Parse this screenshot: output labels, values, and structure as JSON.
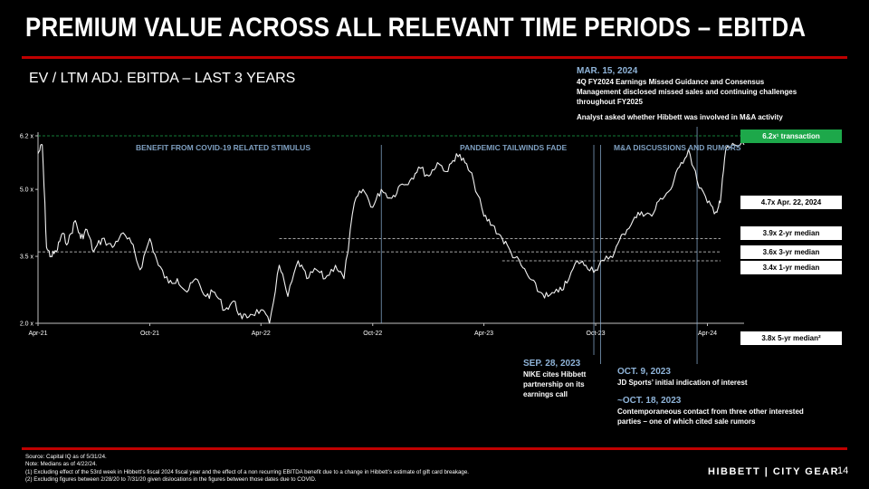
{
  "header": {
    "title": "PREMIUM VALUE ACROSS ALL RELEVANT TIME PERIODS – EBITDA",
    "subtitle": "EV / LTM ADJ. EBITDA – LAST 3 YEARS"
  },
  "annotations": {
    "mar": {
      "date": "MAR. 15, 2024",
      "text1": "4Q FY2024 Earnings Missed Guidance and Consensus",
      "text2": "Management disclosed missed sales and continuing challenges",
      "text3": "throughout FY2025",
      "text4": "Analyst asked whether Hibbett was involved in M&A activity"
    },
    "sep": {
      "date": "SEP. 28, 2023",
      "text1": "NIKE cites Hibbett",
      "text2": "partnership on its",
      "text3": "earnings call"
    },
    "oct9": {
      "date": "OCT. 9, 2023",
      "text": "JD Sports’ initial indication of interest"
    },
    "oct18": {
      "date": "~OCT. 18, 2023",
      "text1": "Contemporaneous contact from three other interested",
      "text2": "parties – one of which cited sale rumors"
    }
  },
  "regions": {
    "covid": "BENEFIT FROM COVID-19 RELATED STIMULUS",
    "tailwinds": "PANDEMIC TAILWINDS FADE",
    "ma": "M&A DISCUSSIONS AND RUMORS"
  },
  "labels": {
    "transaction": "6.2x¹ transaction",
    "apr22": "4.7x Apr. 22, 2024",
    "med2": "3.9x 2-yr median",
    "med3": "3.6x 3-yr median",
    "med1": "3.4x 1-yr median",
    "med5": "3.8x 5-yr median²"
  },
  "colors": {
    "accent_red": "#c00000",
    "transaction_green": "#1da84a",
    "annotation_blue": "#8fb4d9"
  },
  "chart_data": {
    "type": "line",
    "series": [
      {
        "x": [
          "2021-04-01",
          "2021-04-08",
          "2021-04-15",
          "2021-04-22",
          "2021-05-01",
          "2021-05-10",
          "2021-05-20",
          "2021-06-01",
          "2021-06-10",
          "2021-06-20",
          "2021-07-01",
          "2021-07-15",
          "2021-08-01",
          "2021-08-15",
          "2021-09-01",
          "2021-09-15",
          "2021-10-01",
          "2021-10-15",
          "2021-11-01",
          "2021-11-15",
          "2021-12-01",
          "2021-12-15",
          "2022-01-01",
          "2022-01-15",
          "2022-02-01",
          "2022-02-15",
          "2022-03-01",
          "2022-03-15",
          "2022-04-01",
          "2022-04-15",
          "2022-05-01",
          "2022-05-15",
          "2022-06-01",
          "2022-06-15",
          "2022-07-01",
          "2022-07-15",
          "2022-08-01",
          "2022-08-15",
          "2022-09-01",
          "2022-09-15",
          "2022-10-01",
          "2022-10-15",
          "2022-11-01",
          "2022-11-15",
          "2022-12-01",
          "2022-12-15",
          "2023-01-01",
          "2023-01-15",
          "2023-02-01",
          "2023-02-15",
          "2023-03-01",
          "2023-03-15",
          "2023-04-01",
          "2023-04-15",
          "2023-05-01",
          "2023-05-15",
          "2023-06-01",
          "2023-06-15",
          "2023-07-01",
          "2023-07-15",
          "2023-08-01",
          "2023-08-15",
          "2023-09-01",
          "2023-09-15",
          "2023-10-01",
          "2023-10-15",
          "2023-11-01",
          "2023-11-15",
          "2023-12-01",
          "2023-12-15",
          "2024-01-01",
          "2024-01-15",
          "2024-02-01",
          "2024-02-15",
          "2024-03-01",
          "2024-03-15",
          "2024-04-01",
          "2024-04-15",
          "2024-04-22",
          "2024-05-01",
          "2024-05-15",
          "2024-05-31"
        ],
        "values": [
          5.8,
          6.0,
          3.7,
          3.5,
          3.6,
          4.0,
          3.8,
          4.3,
          3.9,
          4.1,
          3.6,
          3.9,
          3.7,
          4.0,
          3.8,
          3.2,
          3.9,
          3.3,
          2.9,
          3.0,
          2.7,
          3.0,
          2.6,
          2.7,
          2.3,
          2.5,
          2.1,
          2.2,
          2.3,
          2.0,
          3.3,
          2.6,
          3.4,
          3.0,
          3.2,
          3.0,
          3.3,
          3.0,
          4.7,
          5.0,
          4.6,
          5.0,
          4.8,
          5.1,
          5.2,
          5.5,
          5.3,
          5.6,
          5.4,
          5.8,
          5.6,
          5.2,
          4.4,
          4.2,
          3.9,
          3.6,
          3.3,
          3.0,
          2.7,
          2.6,
          2.7,
          2.9,
          3.4,
          3.3,
          3.2,
          3.4,
          3.6,
          4.0,
          4.3,
          4.5,
          4.4,
          4.8,
          5.0,
          5.5,
          5.9,
          5.2,
          4.7,
          4.5,
          4.7,
          5.9,
          6.0,
          6.0
        ]
      }
    ],
    "xlabels": [
      "Apr-21",
      "Oct-21",
      "Apr-22",
      "Oct-22",
      "Apr-23",
      "Oct-23",
      "Apr-24"
    ],
    "xlabel_dates": [
      "2021-04-01",
      "2021-10-01",
      "2022-04-01",
      "2022-10-01",
      "2023-04-01",
      "2023-10-01",
      "2024-04-01"
    ],
    "yticks": [
      2.0,
      3.5,
      5.0,
      6.2
    ],
    "ylabels": [
      "2.0 x",
      "3.5 x",
      "5.0 x",
      "6.2 x"
    ],
    "ylim": [
      2.0,
      6.2
    ],
    "reference_lines": [
      {
        "name": "6.2x¹ transaction",
        "value": 6.2,
        "style": "green-dashed",
        "from": "2021-04-01"
      },
      {
        "name": "3.9x 2-yr median",
        "value": 3.9,
        "from": "2022-05-01"
      },
      {
        "name": "3.6x 3-yr median",
        "value": 3.6,
        "from": "2021-04-01"
      },
      {
        "name": "3.4x 1-yr median",
        "value": 3.4,
        "from": "2023-05-01"
      }
    ],
    "event_lines": [
      "2022-10-15",
      "2023-09-28",
      "2023-10-09",
      "2024-03-15"
    ],
    "grid": false,
    "legend": "right"
  },
  "footer": {
    "note1": "Source: Capital IQ as of 5/31/24.",
    "note2": "Note: Medians as of 4/22/24.",
    "note3": "(1) Excluding effect of the 53rd week in Hibbett’s fiscal 2024 fiscal year and the effect of a non recurring EBITDA benefit due to a change in Hibbett’s estimate of gift card breakage.",
    "note4": "(2) Excluding figures between 2/28/20 to 7/31/20 given dislocations in the figures between those dates due to COVID.",
    "brand": "HIBBETT | CITY GEAR",
    "page": "14"
  }
}
